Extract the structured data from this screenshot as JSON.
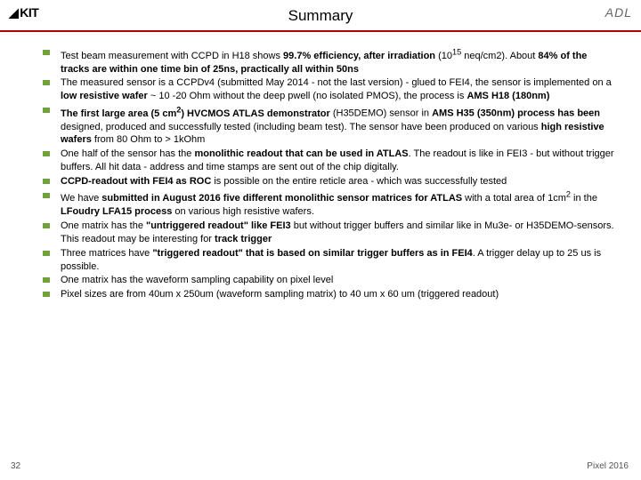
{
  "header": {
    "logo_left": "KIT",
    "logo_right": "ADL",
    "title": "Summary",
    "underline_color": "#b00000"
  },
  "bullets": [
    "Test beam measurement with CCPD in H18 shows <b>99.7% efficiency, after irradiation</b> (10<sup>15</sup> neq/cm2). About <b>84% of the tracks are within one time bin of 25ns, practically all within 50ns</b>",
    "The measured sensor is a CCPDv4 (submitted May 2014 - not the last version) - glued to FEI4, the sensor is implemented on a <b>low resistive wafer</b> ~ 10 -20 Ohm without the deep pwell (no isolated PMOS), the process is <b>AMS H18 (180nm)</b>",
    "<b>The first large area (5 cm<sup>2</sup>) HVCMOS ATLAS demonstrator</b> (H35DEMO) sensor in <b>AMS H35 (350nm) process has been</b> designed, produced and successfully tested (including beam test). The sensor have been produced on various <b>high resistive wafers</b> from 80 Ohm to > 1kOhm",
    "One half of the sensor has the <b>monolithic readout that can be used in ATLAS</b>. The readout is like in FEI3 - but without trigger buffers. All hit data - address and time stamps are sent out of the chip digitally.",
    "<b>CCPD-readout with FEI4 as ROC</b> is possible on the entire reticle area - which was successfully tested",
    "We have <b>submitted in August 2016 five different monolithic sensor matrices for ATLAS</b> with a total area of 1cm<sup>2</sup> in the <b>LFoudry LFA15 process</b> on various high resistive wafers.",
    "One matrix has the <b>\"untriggered readout\" like FEI3</b> but without trigger buffers and similar like in Mu3e- or H35DEMO-sensors. This readout may be interesting for <b>track trigger</b>",
    "Three matrices have <b>\"triggered readout\" that is based on similar trigger buffers as in FEI4</b>. A trigger delay up to 25 us is possible.",
    "One matrix has the waveform sampling capability on pixel level",
    "Pixel sizes are from 40um x 250um (waveform sampling matrix) to 40 um x  60 um (triggered readout)"
  ],
  "footer": {
    "page": "32",
    "right": "Pixel 2016"
  },
  "style": {
    "bullet_color": "#6fa33a",
    "title_fontsize": 17,
    "body_fontsize": 11,
    "footer_fontsize": 10
  }
}
